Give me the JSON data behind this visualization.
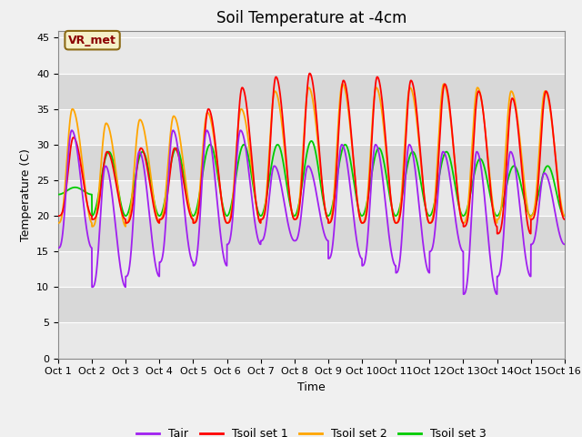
{
  "title": "Soil Temperature at -4cm",
  "xlabel": "Time",
  "ylabel": "Temperature (C)",
  "xlim": [
    0,
    15
  ],
  "ylim": [
    0,
    46
  ],
  "yticks": [
    0,
    5,
    10,
    15,
    20,
    25,
    30,
    35,
    40,
    45
  ],
  "xtick_labels": [
    "Oct 1",
    "Oct 2",
    "Oct 3",
    "Oct 4",
    "Oct 5",
    "Oct 6",
    "Oct 7",
    "Oct 8",
    "Oct 9",
    "Oct 10",
    "Oct 11",
    "Oct 12",
    "Oct 13",
    "Oct 14",
    "Oct 15",
    "Oct 16"
  ],
  "annotation_text": "VR_met",
  "bg_plot": "#e8e8e8",
  "bg_fig": "#f0f0f0",
  "bg_band_dark": "#d8d8d8",
  "color_tair": "#a020f0",
  "color_tsoil1": "#ff0000",
  "color_tsoil2": "#ffa500",
  "color_tsoil3": "#00cc00",
  "linewidth": 1.3,
  "legend_labels": [
    "Tair",
    "Tsoil set 1",
    "Tsoil set 2",
    "Tsoil set 3"
  ],
  "title_fontsize": 12,
  "axis_fontsize": 9,
  "tick_fontsize": 8
}
